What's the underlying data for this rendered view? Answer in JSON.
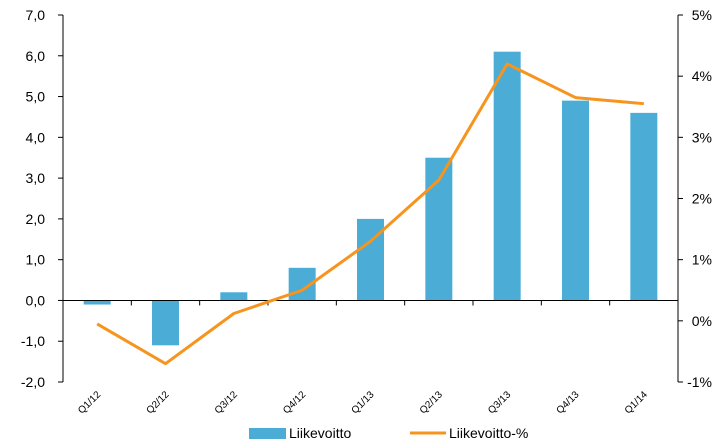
{
  "chart_data": {
    "type": "bar",
    "categories": [
      "Q1/12",
      "Q2/12",
      "Q3/12",
      "Q4/12",
      "Q1/13",
      "Q2/13",
      "Q3/13",
      "Q4/13",
      "Q1/14"
    ],
    "series": [
      {
        "name": "Liikevoitto",
        "type": "bar",
        "axis": "left",
        "color": "#4bacd6",
        "values": [
          -0.1,
          -1.1,
          0.2,
          0.8,
          2.0,
          3.5,
          6.1,
          4.9,
          4.6
        ]
      },
      {
        "name": "Liikevoitto-%",
        "type": "line",
        "axis": "right",
        "color": "#f7941d",
        "values": [
          -0.05,
          -0.7,
          0.12,
          0.5,
          1.3,
          2.3,
          4.2,
          3.65,
          3.55
        ]
      }
    ],
    "y_left": {
      "ylim": [
        -2,
        7
      ],
      "ticks": [
        -2,
        -1,
        0,
        1,
        2,
        3,
        4,
        5,
        6,
        7
      ],
      "tick_labels": [
        "-2,0",
        "-1,0",
        "0,0",
        "1,0",
        "2,0",
        "3,0",
        "4,0",
        "5,0",
        "6,0",
        "7,0"
      ]
    },
    "y_right": {
      "ylim": [
        -1,
        5
      ],
      "ticks": [
        -1,
        0,
        1,
        2,
        3,
        4,
        5
      ],
      "tick_labels": [
        "-1%",
        "0%",
        "1%",
        "2%",
        "3%",
        "4%",
        "5%"
      ]
    },
    "grid": false,
    "legend": {
      "position": "bottom",
      "entries": [
        "Liikevoitto",
        "Liikevoitto-%"
      ]
    }
  }
}
